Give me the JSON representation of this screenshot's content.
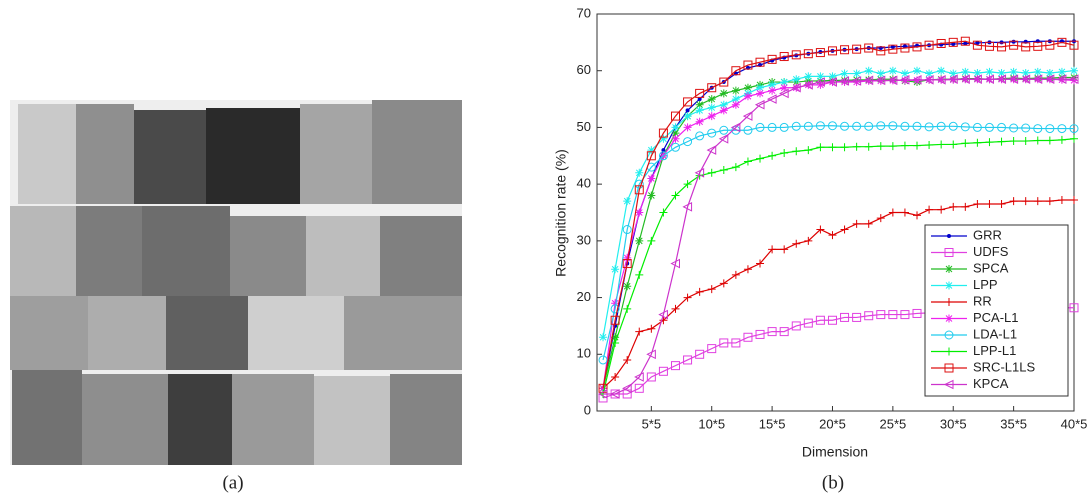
{
  "captions": [
    "(a)",
    "(b)"
  ],
  "chart_data": {
    "type": "line",
    "xlabel": "Dimension",
    "ylabel": "Recognition rate (%)",
    "x": [
      1,
      2,
      3,
      4,
      5,
      6,
      7,
      8,
      9,
      10,
      11,
      12,
      13,
      14,
      15,
      16,
      17,
      18,
      19,
      20,
      21,
      22,
      23,
      24,
      25,
      26,
      27,
      28,
      29,
      30,
      31,
      32,
      33,
      34,
      35,
      36,
      37,
      38,
      39,
      40
    ],
    "xlim": [
      0.5,
      40
    ],
    "xticks": [
      {
        "value": 5,
        "label": "5*5"
      },
      {
        "value": 10,
        "label": "10*5"
      },
      {
        "value": 15,
        "label": "15*5"
      },
      {
        "value": 20,
        "label": "20*5"
      },
      {
        "value": 25,
        "label": "25*5"
      },
      {
        "value": 30,
        "label": "30*5"
      },
      {
        "value": 35,
        "label": "35*5"
      },
      {
        "value": 40,
        "label": "40*5"
      }
    ],
    "ylim": [
      0,
      70
    ],
    "yticks": [
      0,
      10,
      20,
      30,
      40,
      50,
      60,
      70
    ],
    "legend": "right",
    "series": [
      {
        "name": "GRR",
        "color": "#0000cc",
        "marker": "dot",
        "values": [
          4,
          15,
          26,
          35,
          41,
          46,
          50,
          53,
          55,
          57,
          58,
          59.5,
          60.5,
          61,
          61.8,
          62.3,
          62.7,
          63,
          63.3,
          63.5,
          63.7,
          63.8,
          64,
          64,
          64.2,
          64.3,
          64.4,
          64.5,
          64.6,
          64.7,
          64.8,
          64.9,
          65,
          65,
          65.1,
          65.1,
          65.2,
          65.2,
          65.2,
          65.2
        ]
      },
      {
        "name": "UDFS",
        "color": "#e040e0",
        "marker": "square",
        "values": [
          2.3,
          3,
          3,
          4,
          6,
          7,
          8,
          9,
          10,
          11,
          12,
          12,
          13,
          13.5,
          14,
          14,
          15,
          15.5,
          16,
          16,
          16.5,
          16.5,
          16.8,
          17,
          17,
          17,
          17.2,
          17.3,
          17.5,
          17.5,
          17.6,
          17.7,
          17.8,
          17.8,
          17.9,
          18,
          18,
          18,
          18.2,
          18.2
        ]
      },
      {
        "name": "SPCA",
        "color": "#22bb22",
        "marker": "star",
        "values": [
          4,
          13,
          22,
          30,
          38,
          45,
          49,
          52,
          54,
          55,
          56,
          56.5,
          57,
          57.5,
          58,
          58,
          58,
          58.2,
          58.2,
          58.3,
          58.3,
          58.4,
          58.4,
          58.5,
          58.5,
          58.2,
          58,
          58.4,
          58.5,
          58.5,
          58.6,
          58.6,
          58.5,
          58.6,
          58.7,
          58.6,
          58.7,
          58.7,
          58.8,
          58.8
        ]
      },
      {
        "name": "LPP",
        "color": "#22eeee",
        "marker": "star",
        "values": [
          13,
          25,
          37,
          42,
          46,
          48,
          50,
          52,
          53,
          53.5,
          54,
          55,
          56,
          57,
          57.5,
          58,
          58.5,
          59,
          59,
          59,
          59.5,
          59.5,
          60,
          59.5,
          60,
          59.5,
          60,
          59.5,
          60,
          59.5,
          59.8,
          59.6,
          59.8,
          59.6,
          59.8,
          59.6,
          59.8,
          59.6,
          59.8,
          60
        ]
      },
      {
        "name": "RR",
        "color": "#dd0000",
        "marker": "plus",
        "values": [
          4,
          6,
          9,
          14,
          14.5,
          16,
          18,
          20,
          21,
          21.5,
          22.5,
          24,
          25,
          26,
          28.5,
          28.5,
          29.5,
          30,
          32,
          31,
          32,
          33,
          33,
          34,
          35,
          35,
          34.5,
          35.5,
          35.5,
          36,
          36,
          36.5,
          36.5,
          36.5,
          37,
          37,
          37,
          37,
          37.2,
          37.2
        ]
      },
      {
        "name": "PCA-L1",
        "color": "#ee22ee",
        "marker": "star",
        "values": [
          4,
          19,
          27,
          35,
          41,
          45,
          48,
          50,
          51,
          52,
          53,
          54,
          55.5,
          56,
          56.5,
          57,
          57,
          57.5,
          57.5,
          58,
          58,
          58,
          58.2,
          58.2,
          58.3,
          58.3,
          58.3,
          58.4,
          58.4,
          58.4,
          58.5,
          58.5,
          58.5,
          58.5,
          58.5,
          58.5,
          58.5,
          58.5,
          58.4,
          58.3
        ]
      },
      {
        "name": "LDA-L1",
        "color": "#22ccee",
        "marker": "circle",
        "values": [
          9,
          18,
          32,
          40,
          43,
          45,
          46.5,
          47.5,
          48.5,
          49,
          49.5,
          49.5,
          49.5,
          50,
          50,
          50,
          50.2,
          50.2,
          50.3,
          50.3,
          50.2,
          50.2,
          50.2,
          50.3,
          50.3,
          50.2,
          50.2,
          50.1,
          50.2,
          50.2,
          50.1,
          50,
          50,
          50,
          49.9,
          49.9,
          49.8,
          49.8,
          49.8,
          49.8
        ]
      },
      {
        "name": "LPP-L1",
        "color": "#00ee00",
        "marker": "plus",
        "values": [
          3,
          12,
          18,
          24,
          30,
          35,
          38,
          40,
          41.5,
          42,
          42.5,
          43,
          44,
          44.5,
          45,
          45.5,
          45.8,
          46,
          46.5,
          46.5,
          46.5,
          46.6,
          46.6,
          46.7,
          46.7,
          46.8,
          46.8,
          46.9,
          47,
          47,
          47.2,
          47.3,
          47.4,
          47.5,
          47.6,
          47.6,
          47.7,
          47.7,
          47.8,
          48
        ]
      },
      {
        "name": "SRC-L1LS",
        "color": "#dd1111",
        "marker": "square",
        "values": [
          4,
          16,
          26,
          39,
          45,
          49,
          52,
          54.5,
          56,
          57,
          58,
          60,
          61,
          61.5,
          62,
          62.5,
          62.8,
          63,
          63.2,
          63.5,
          63.7,
          63.8,
          64,
          63.5,
          63.8,
          64,
          64.2,
          64.5,
          64.8,
          65,
          65.2,
          64.5,
          64.3,
          64.2,
          64.5,
          64.2,
          64.3,
          64.5,
          65,
          64.5
        ]
      },
      {
        "name": "KPCA",
        "color": "#cc33cc",
        "marker": "triangle",
        "values": [
          3,
          3,
          4,
          6,
          10,
          17,
          26,
          36,
          42,
          46,
          48,
          50,
          52,
          54,
          55,
          56,
          57,
          57.5,
          58,
          58,
          58.2,
          58.2,
          58.3,
          58.3,
          58.3,
          58.4,
          58.4,
          58.4,
          58.4,
          58.5,
          58.5,
          58.5,
          58.5,
          58.5,
          58.5,
          58.5,
          58.5,
          58.5,
          58.5,
          58.5
        ]
      }
    ]
  }
}
